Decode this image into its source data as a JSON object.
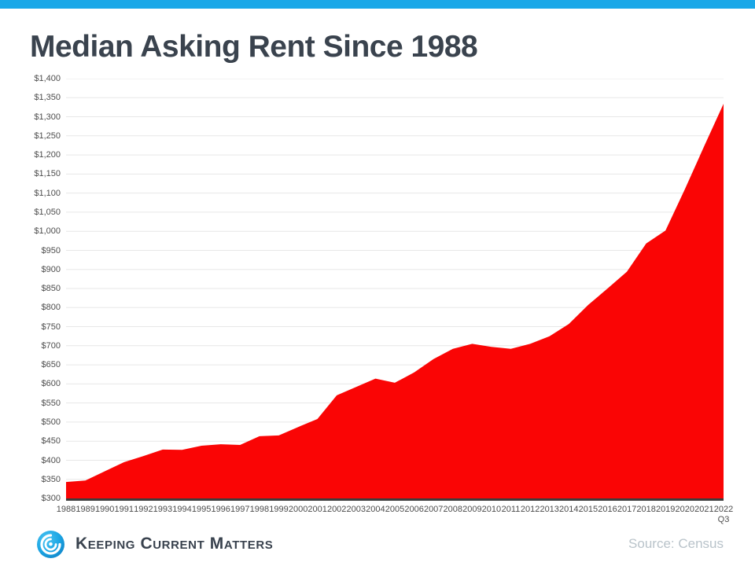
{
  "page": {
    "accent_bar_color": "#1AA8E8",
    "title": "Median Asking Rent Since 1988",
    "source_note": "Source: Census",
    "brand": {
      "name": "Keeping Current Matters",
      "icon": "kcm-swirl-icon"
    }
  },
  "chart_data": {
    "type": "area",
    "title": "Median Asking Rent Since 1988",
    "categories": [
      "1988",
      "1989",
      "1990",
      "1991",
      "1992",
      "1993",
      "1994",
      "1995",
      "1996",
      "1997",
      "1998",
      "1999",
      "2000",
      "2001",
      "2002",
      "2003",
      "2004",
      "2005",
      "2006",
      "2007",
      "2008",
      "2009",
      "2010",
      "2011",
      "2012",
      "2013",
      "2014",
      "2015",
      "2016",
      "2017",
      "2018",
      "2019",
      "2020",
      "2021",
      "2022"
    ],
    "last_category_note": "Q3",
    "series": [
      {
        "name": "Median asking rent (USD)",
        "values": [
          343,
          347,
          371,
          395,
          411,
          428,
          427,
          438,
          442,
          440,
          463,
          465,
          487,
          508,
          570,
          592,
          614,
          603,
          630,
          665,
          692,
          705,
          697,
          692,
          705,
          725,
          757,
          807,
          850,
          894,
          968,
          1002,
          1110,
          1223,
          1334
        ]
      }
    ],
    "ylim": [
      300,
      1400
    ],
    "y_ticks": [
      300,
      350,
      400,
      450,
      500,
      550,
      600,
      650,
      700,
      750,
      800,
      850,
      900,
      950,
      1000,
      1050,
      1100,
      1150,
      1200,
      1250,
      1300,
      1350,
      1400
    ],
    "y_tick_labels": [
      "$300",
      "$350",
      "$400",
      "$450",
      "$500",
      "$550",
      "$600",
      "$650",
      "$700",
      "$750",
      "$800",
      "$850",
      "$900",
      "$950",
      "$1,000",
      "$1,050",
      "$1,100",
      "$1,150",
      "$1,200",
      "$1,250",
      "$1,300",
      "$1,350",
      "$1,400"
    ],
    "grid": "horizontal",
    "gridline_color": "#E7E7E7",
    "legend": "none",
    "area_color": "#FA0505",
    "axis_line_color": "#3D3D3D"
  }
}
